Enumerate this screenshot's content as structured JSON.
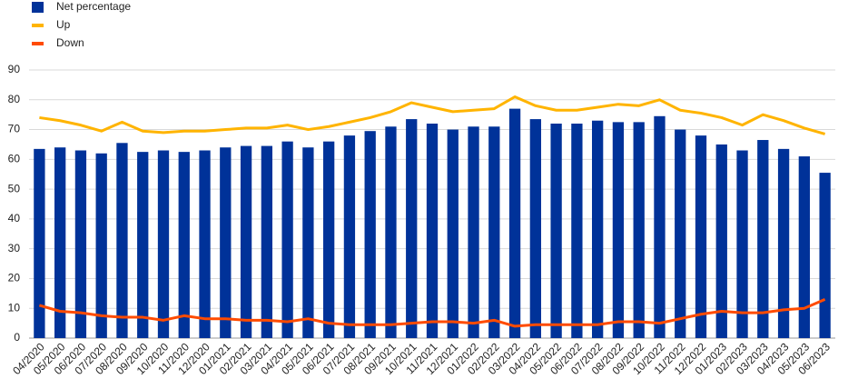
{
  "chart_data": {
    "type": "bar",
    "categories": [
      "04/2020",
      "05/2020",
      "06/2020",
      "07/2020",
      "08/2020",
      "09/2020",
      "10/2020",
      "11/2020",
      "12/2020",
      "01/2021",
      "02/2021",
      "03/2021",
      "04/2021",
      "05/2021",
      "06/2021",
      "07/2021",
      "08/2021",
      "09/2021",
      "10/2021",
      "11/2021",
      "12/2021",
      "01/2022",
      "02/2022",
      "03/2022",
      "04/2022",
      "05/2022",
      "06/2022",
      "07/2022",
      "08/2022",
      "09/2022",
      "10/2022",
      "11/2022",
      "12/2022",
      "01/2023",
      "02/2023",
      "03/2023",
      "04/2023",
      "05/2023",
      "06/2023"
    ],
    "series": [
      {
        "name": "Net percentage",
        "type": "bar",
        "color": "#003299",
        "values": [
          63.5,
          64,
          63,
          62,
          65.5,
          62.5,
          63,
          62.5,
          63,
          64,
          64.5,
          64.5,
          66,
          64,
          66,
          68,
          69.5,
          71,
          73.5,
          72,
          70,
          71,
          71,
          77,
          73.5,
          72,
          72,
          73,
          72.5,
          72.5,
          74.5,
          70,
          68,
          65,
          63,
          66.5,
          63.5,
          61,
          55.5
        ]
      },
      {
        "name": "Up",
        "type": "line",
        "color": "#ffb400",
        "values": [
          74,
          73,
          71.5,
          69.5,
          72.5,
          69.5,
          69,
          69.5,
          69.5,
          70,
          70.5,
          70.5,
          71.5,
          70,
          71,
          72.5,
          74,
          76,
          79,
          77.5,
          76,
          76.5,
          77,
          81,
          78,
          76.5,
          76.5,
          77.5,
          78.5,
          78,
          80,
          76.5,
          75.5,
          74,
          71.5,
          75,
          73,
          70.5,
          68.5
        ]
      },
      {
        "name": "Down",
        "type": "line",
        "color": "#ff4b00",
        "values": [
          11,
          9,
          8.5,
          7.5,
          7,
          7,
          6,
          7.5,
          6.5,
          6.5,
          6,
          6,
          5.5,
          6.5,
          5,
          4.5,
          4.5,
          4.5,
          5,
          5.5,
          5.5,
          5,
          6,
          4,
          4.5,
          4.5,
          4.5,
          4.5,
          5.5,
          5.5,
          5,
          6.5,
          8,
          9,
          8.5,
          8.5,
          9.5,
          10,
          13
        ]
      }
    ],
    "ylim": [
      0,
      90
    ],
    "yticks": [
      0,
      10,
      20,
      30,
      40,
      50,
      60,
      70,
      80,
      90
    ],
    "grid": true,
    "legend": "top-left"
  }
}
